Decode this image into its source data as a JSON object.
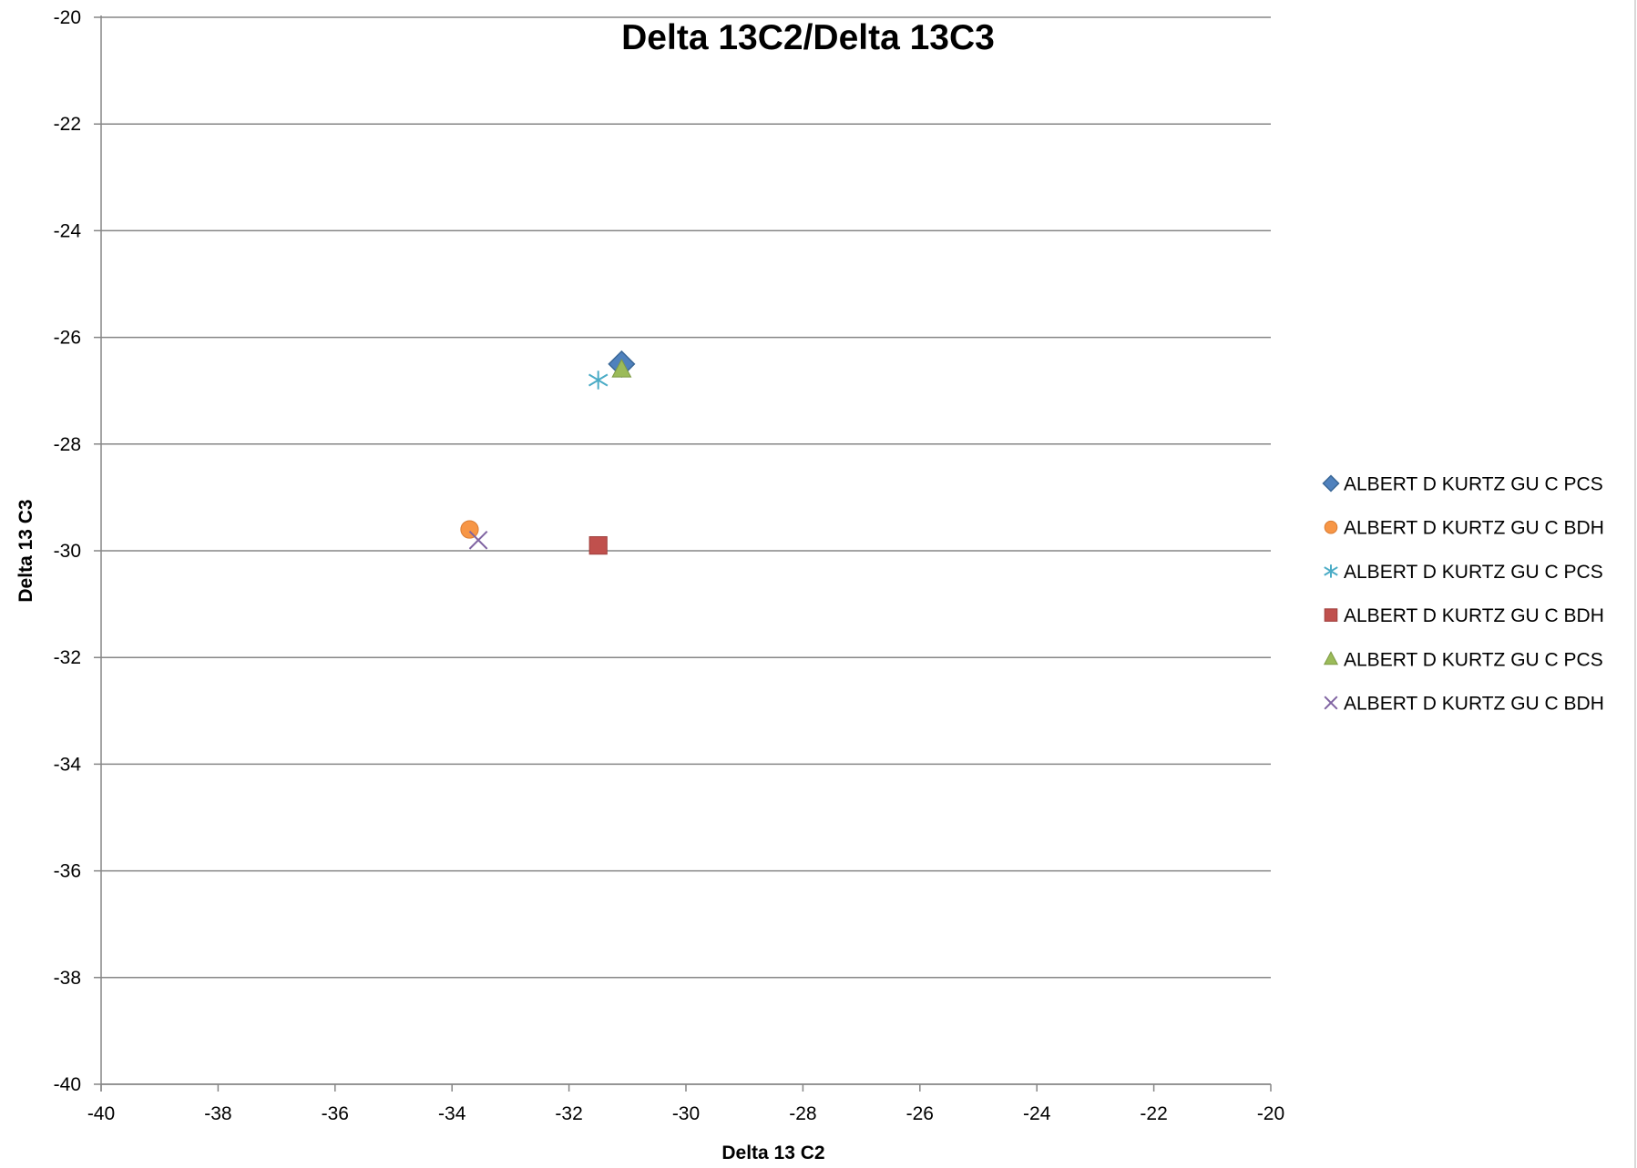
{
  "chart_data": {
    "type": "scatter",
    "title": "Delta 13C2/Delta 13C3",
    "xlabel": "Delta 13 C2",
    "ylabel": "Delta 13 C3",
    "xlim": [
      -40,
      -20
    ],
    "ylim": [
      -40,
      -20
    ],
    "xticks": [
      -40,
      -38,
      -36,
      -34,
      -32,
      -30,
      -28,
      -26,
      -24,
      -22,
      -20
    ],
    "yticks": [
      -40,
      -38,
      -36,
      -34,
      -32,
      -30,
      -28,
      -26,
      -24,
      -22,
      -20
    ],
    "grid": "horizontal major gridlines",
    "legend_position": "right",
    "series": [
      {
        "name": "ALBERT D KURTZ GU C PCS",
        "marker": "diamond",
        "color": "#4F81BD",
        "points": [
          {
            "x": -31.1,
            "y": -26.5
          }
        ]
      },
      {
        "name": "ALBERT D KURTZ GU C BDH",
        "marker": "circle",
        "color": "#F79646",
        "points": [
          {
            "x": -33.7,
            "y": -29.6
          }
        ]
      },
      {
        "name": "ALBERT D KURTZ GU C PCS",
        "marker": "asterisk",
        "color": "#4BACC6",
        "points": [
          {
            "x": -31.5,
            "y": -26.8
          }
        ]
      },
      {
        "name": "ALBERT D KURTZ GU C BDH",
        "marker": "square",
        "color": "#C0504D",
        "points": [
          {
            "x": -31.5,
            "y": -29.9
          }
        ]
      },
      {
        "name": "ALBERT D KURTZ GU C PCS",
        "marker": "triangle",
        "color": "#9BBB59",
        "points": [
          {
            "x": -31.1,
            "y": -26.6
          }
        ]
      },
      {
        "name": "ALBERT D KURTZ GU C BDH",
        "marker": "x",
        "color": "#8064A2",
        "points": [
          {
            "x": -33.55,
            "y": -29.8
          }
        ]
      }
    ]
  }
}
